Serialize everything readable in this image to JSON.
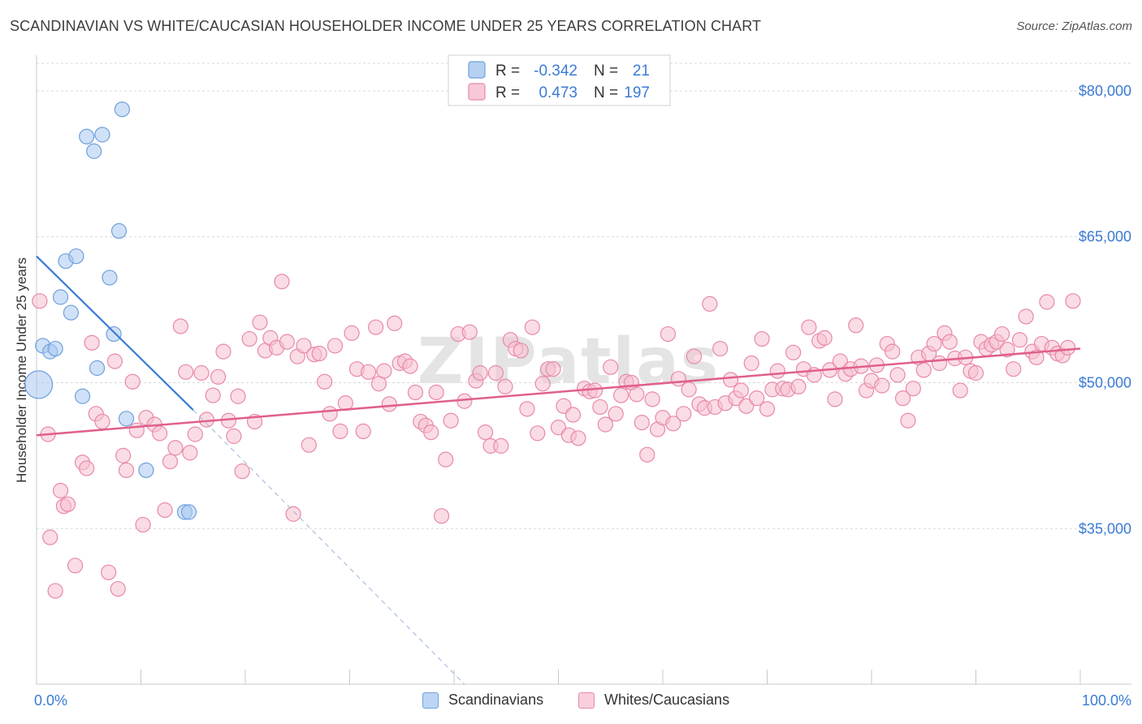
{
  "title": "SCANDINAVIAN VS WHITE/CAUCASIAN HOUSEHOLDER INCOME UNDER 25 YEARS CORRELATION CHART",
  "source": "Source: ZipAtlas.com",
  "watermark": "ZIPatlas",
  "colors": {
    "blue_fill": "#a9c8f0",
    "blue_stroke": "#6fa0dc",
    "blue_line": "#3a7bd5",
    "pink_fill": "#f6bfd0",
    "pink_stroke": "#e889a8",
    "pink_line": "#e0608a",
    "axis_label": "#3a7bd5",
    "grid": "#d8d8d8"
  },
  "legend": {
    "rows": [
      {
        "r_label": "R =",
        "r_value": "-0.342",
        "n_label": "N =",
        "n_value": "21",
        "series": "blue"
      },
      {
        "r_label": "R =",
        "r_value": "0.473",
        "n_label": "N =",
        "n_value": "197",
        "series": "pink"
      }
    ]
  },
  "bottom_legend": {
    "items": [
      {
        "label": "Scandinavians",
        "series": "blue"
      },
      {
        "label": "Whites/Caucasians",
        "series": "pink"
      }
    ]
  },
  "chart_data": {
    "type": "scatter",
    "title": "SCANDINAVIAN VS WHITE/CAUCASIAN HOUSEHOLDER INCOME UNDER 25 YEARS CORRELATION CHART",
    "xlabel": "",
    "ylabel": "Householder Income Under 25 years",
    "xlim": [
      0,
      100
    ],
    "ylim": [
      19000,
      83000
    ],
    "x_tick_labels": [
      {
        "value": 0,
        "label": "0.0%"
      },
      {
        "value": 100,
        "label": "100.0%"
      }
    ],
    "y_ticks": [
      {
        "value": 35000,
        "label": "$35,000"
      },
      {
        "value": 50000,
        "label": "$50,000"
      },
      {
        "value": 65000,
        "label": "$65,000"
      },
      {
        "value": 80000,
        "label": "$80,000"
      }
    ],
    "grid": true,
    "legend_position": "top-center",
    "series": [
      {
        "name": "Scandinavians",
        "color": "blue",
        "trend": {
          "x": [
            0,
            15
          ],
          "y": [
            63000,
            47200
          ],
          "dashed_extension_to": [
            41,
            19000
          ]
        },
        "points": [
          [
            0.2,
            49800
          ],
          [
            0.6,
            53800
          ],
          [
            1.3,
            53200
          ],
          [
            1.8,
            53500
          ],
          [
            2.3,
            58800
          ],
          [
            2.8,
            62500
          ],
          [
            3.3,
            57200
          ],
          [
            3.8,
            63000
          ],
          [
            4.4,
            48600
          ],
          [
            4.8,
            75300
          ],
          [
            5.5,
            73800
          ],
          [
            5.8,
            51500
          ],
          [
            6.3,
            75500
          ],
          [
            7.0,
            60800
          ],
          [
            7.4,
            55000
          ],
          [
            7.9,
            65600
          ],
          [
            8.2,
            78100
          ],
          [
            8.6,
            46300
          ],
          [
            10.5,
            41000
          ],
          [
            14.2,
            36700
          ],
          [
            14.6,
            36700
          ]
        ]
      },
      {
        "name": "Whites/Caucasians",
        "color": "pink",
        "trend": {
          "x": [
            0,
            100
          ],
          "y": [
            44600,
            53500
          ]
        },
        "points": [
          [
            0.3,
            58400
          ],
          [
            1.1,
            44700
          ],
          [
            1.3,
            34100
          ],
          [
            1.8,
            28600
          ],
          [
            2.3,
            38900
          ],
          [
            2.6,
            37300
          ],
          [
            3.0,
            37500
          ],
          [
            3.7,
            31200
          ],
          [
            4.4,
            41800
          ],
          [
            4.8,
            41200
          ],
          [
            5.3,
            54100
          ],
          [
            5.7,
            46800
          ],
          [
            6.3,
            46000
          ],
          [
            6.9,
            30500
          ],
          [
            7.5,
            52200
          ],
          [
            7.8,
            28800
          ],
          [
            8.3,
            42500
          ],
          [
            8.6,
            41000
          ],
          [
            9.2,
            50100
          ],
          [
            9.6,
            45100
          ],
          [
            10.2,
            35400
          ],
          [
            10.5,
            46400
          ],
          [
            11.3,
            45700
          ],
          [
            11.8,
            44800
          ],
          [
            12.3,
            36900
          ],
          [
            12.8,
            41900
          ],
          [
            13.3,
            43300
          ],
          [
            13.8,
            55800
          ],
          [
            14.3,
            51100
          ],
          [
            14.7,
            42800
          ],
          [
            15.2,
            44700
          ],
          [
            15.8,
            51000
          ],
          [
            16.3,
            46200
          ],
          [
            16.9,
            48700
          ],
          [
            17.4,
            50600
          ],
          [
            17.9,
            53200
          ],
          [
            18.4,
            46100
          ],
          [
            18.9,
            44500
          ],
          [
            19.3,
            48600
          ],
          [
            19.7,
            40900
          ],
          [
            20.4,
            54500
          ],
          [
            20.9,
            46000
          ],
          [
            21.4,
            56200
          ],
          [
            21.9,
            53300
          ],
          [
            22.4,
            54600
          ],
          [
            23.0,
            53600
          ],
          [
            23.5,
            60400
          ],
          [
            24.0,
            54200
          ],
          [
            24.6,
            36500
          ],
          [
            25.0,
            52700
          ],
          [
            25.6,
            53800
          ],
          [
            26.1,
            43600
          ],
          [
            26.6,
            52900
          ],
          [
            27.1,
            53000
          ],
          [
            27.6,
            50100
          ],
          [
            28.1,
            46800
          ],
          [
            28.6,
            53800
          ],
          [
            29.1,
            45000
          ],
          [
            29.6,
            47900
          ],
          [
            30.2,
            55100
          ],
          [
            30.7,
            51400
          ],
          [
            31.3,
            45000
          ],
          [
            31.8,
            51100
          ],
          [
            32.5,
            55700
          ],
          [
            32.8,
            49900
          ],
          [
            33.3,
            51200
          ],
          [
            33.8,
            47800
          ],
          [
            34.3,
            56100
          ],
          [
            34.8,
            52000
          ],
          [
            35.3,
            52200
          ],
          [
            35.8,
            51700
          ],
          [
            36.3,
            49000
          ],
          [
            36.8,
            46000
          ],
          [
            37.3,
            45600
          ],
          [
            37.8,
            44900
          ],
          [
            38.3,
            49000
          ],
          [
            38.8,
            36300
          ],
          [
            39.2,
            42100
          ],
          [
            39.7,
            46100
          ],
          [
            40.4,
            55000
          ],
          [
            41.0,
            48100
          ],
          [
            41.5,
            55200
          ],
          [
            42.1,
            50200
          ],
          [
            42.5,
            51000
          ],
          [
            43.0,
            44900
          ],
          [
            43.5,
            43500
          ],
          [
            44.0,
            51000
          ],
          [
            44.5,
            43500
          ],
          [
            44.9,
            49600
          ],
          [
            45.4,
            54400
          ],
          [
            45.9,
            53500
          ],
          [
            46.4,
            53300
          ],
          [
            47.0,
            47300
          ],
          [
            47.5,
            55700
          ],
          [
            48.0,
            44800
          ],
          [
            48.5,
            49900
          ],
          [
            49.0,
            51400
          ],
          [
            49.5,
            51400
          ],
          [
            50.0,
            45400
          ],
          [
            50.5,
            47600
          ],
          [
            51.0,
            44600
          ],
          [
            51.4,
            46700
          ],
          [
            51.9,
            44300
          ],
          [
            52.5,
            49400
          ],
          [
            53.0,
            49100
          ],
          [
            53.5,
            49200
          ],
          [
            54.0,
            47500
          ],
          [
            54.5,
            45700
          ],
          [
            55.0,
            51600
          ],
          [
            55.5,
            46800
          ],
          [
            56.0,
            48700
          ],
          [
            56.5,
            50100
          ],
          [
            57.0,
            50000
          ],
          [
            57.5,
            48800
          ],
          [
            58.0,
            45900
          ],
          [
            58.5,
            42600
          ],
          [
            59.0,
            48300
          ],
          [
            59.5,
            45200
          ],
          [
            60.0,
            46400
          ],
          [
            60.5,
            55000
          ],
          [
            61.0,
            45800
          ],
          [
            61.5,
            50400
          ],
          [
            62.0,
            46800
          ],
          [
            62.5,
            49300
          ],
          [
            63.0,
            52700
          ],
          [
            63.5,
            47800
          ],
          [
            64.0,
            47400
          ],
          [
            64.5,
            58100
          ],
          [
            65.0,
            47500
          ],
          [
            65.5,
            53500
          ],
          [
            66.0,
            47900
          ],
          [
            66.5,
            50300
          ],
          [
            67.0,
            48400
          ],
          [
            67.5,
            49200
          ],
          [
            68.0,
            47600
          ],
          [
            68.5,
            52000
          ],
          [
            69.0,
            48400
          ],
          [
            69.5,
            54500
          ],
          [
            70.0,
            47300
          ],
          [
            70.5,
            49300
          ],
          [
            71.0,
            51200
          ],
          [
            71.5,
            49400
          ],
          [
            72.0,
            49300
          ],
          [
            72.5,
            53100
          ],
          [
            73.0,
            49600
          ],
          [
            73.5,
            51400
          ],
          [
            74.0,
            55700
          ],
          [
            74.5,
            50800
          ],
          [
            75.0,
            54300
          ],
          [
            75.5,
            54600
          ],
          [
            76.0,
            51300
          ],
          [
            76.5,
            48300
          ],
          [
            77.0,
            52200
          ],
          [
            77.5,
            50900
          ],
          [
            78.0,
            51400
          ],
          [
            78.5,
            55900
          ],
          [
            79.0,
            51700
          ],
          [
            79.5,
            49200
          ],
          [
            80.0,
            50200
          ],
          [
            80.5,
            51800
          ],
          [
            81.0,
            49700
          ],
          [
            81.5,
            54000
          ],
          [
            82.0,
            53200
          ],
          [
            82.5,
            50800
          ],
          [
            83.0,
            48400
          ],
          [
            83.5,
            46100
          ],
          [
            84.0,
            49400
          ],
          [
            84.5,
            52600
          ],
          [
            85.0,
            51300
          ],
          [
            85.5,
            53000
          ],
          [
            86.0,
            54000
          ],
          [
            86.5,
            52000
          ],
          [
            87.0,
            55100
          ],
          [
            87.5,
            54200
          ],
          [
            88.0,
            52500
          ],
          [
            88.5,
            49200
          ],
          [
            89.0,
            52600
          ],
          [
            89.5,
            51200
          ],
          [
            90.0,
            51000
          ],
          [
            90.5,
            54200
          ],
          [
            91.0,
            53500
          ],
          [
            91.5,
            53900
          ],
          [
            92.0,
            54200
          ],
          [
            92.5,
            55000
          ],
          [
            93.0,
            53400
          ],
          [
            93.6,
            51400
          ],
          [
            94.2,
            54400
          ],
          [
            94.8,
            56800
          ],
          [
            95.4,
            53200
          ],
          [
            95.8,
            52600
          ],
          [
            96.3,
            54000
          ],
          [
            96.8,
            58300
          ],
          [
            97.3,
            53600
          ],
          [
            97.8,
            53000
          ],
          [
            98.3,
            52800
          ],
          [
            98.8,
            53600
          ],
          [
            99.3,
            58400
          ]
        ]
      }
    ]
  }
}
